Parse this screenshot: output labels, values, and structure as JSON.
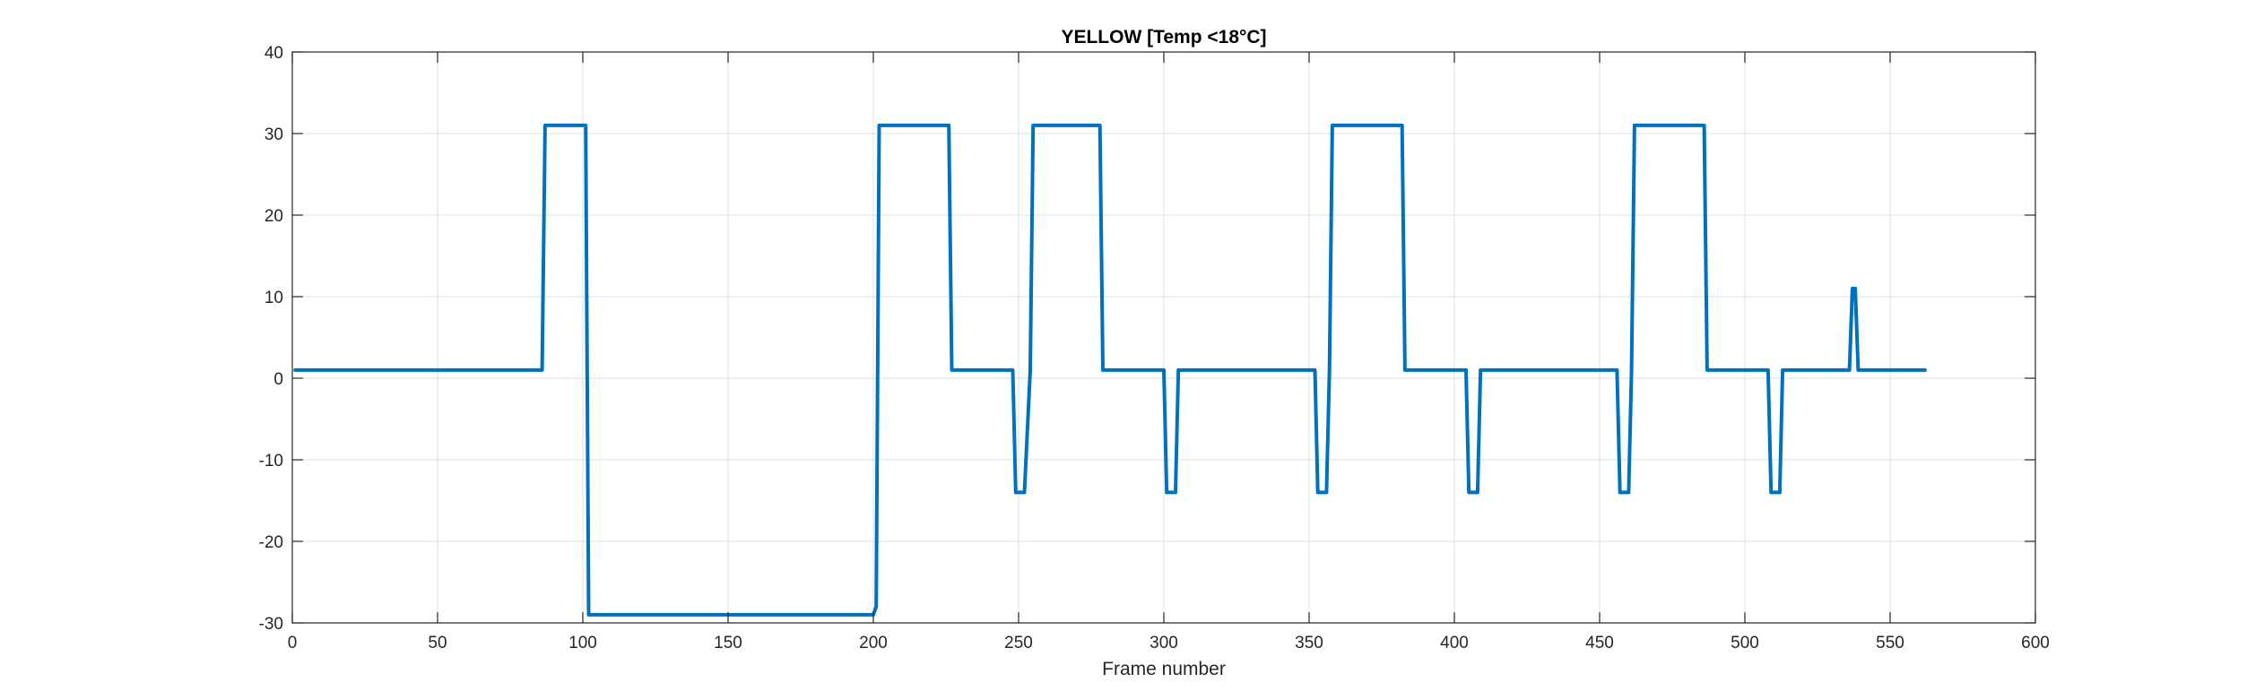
{
  "chart_data": {
    "type": "line",
    "title": "YELLOW [Temp <18°C]",
    "xlabel": "Frame number",
    "ylabel": "",
    "xlim": [
      0,
      600
    ],
    "ylim": [
      -30,
      40
    ],
    "xticks": [
      0,
      50,
      100,
      150,
      200,
      250,
      300,
      350,
      400,
      450,
      500,
      550,
      600
    ],
    "yticks": [
      -30,
      -20,
      -10,
      0,
      10,
      20,
      30,
      40
    ],
    "grid": true,
    "line_color": "#0072BD",
    "series": [
      {
        "x": [
          1,
          86,
          87,
          101,
          102,
          200,
          201,
          202,
          226,
          227,
          248,
          249,
          252,
          254,
          255,
          278,
          279,
          300,
          301,
          304,
          305,
          352,
          353,
          356,
          357,
          358,
          382,
          383,
          404,
          405,
          408,
          409,
          456,
          457,
          460,
          461,
          462,
          486,
          487,
          508,
          509,
          512,
          513,
          536,
          537,
          538,
          539,
          562
        ],
        "y": [
          1,
          1,
          31,
          31,
          -29,
          -29,
          -28,
          31,
          31,
          1,
          1,
          -14,
          -14,
          1,
          31,
          31,
          1,
          1,
          -14,
          -14,
          1,
          1,
          -14,
          -14,
          1,
          31,
          31,
          1,
          1,
          -14,
          -14,
          1,
          1,
          -14,
          -14,
          1,
          31,
          31,
          1,
          1,
          -14,
          -14,
          1,
          1,
          11,
          11,
          1,
          1
        ]
      }
    ]
  }
}
